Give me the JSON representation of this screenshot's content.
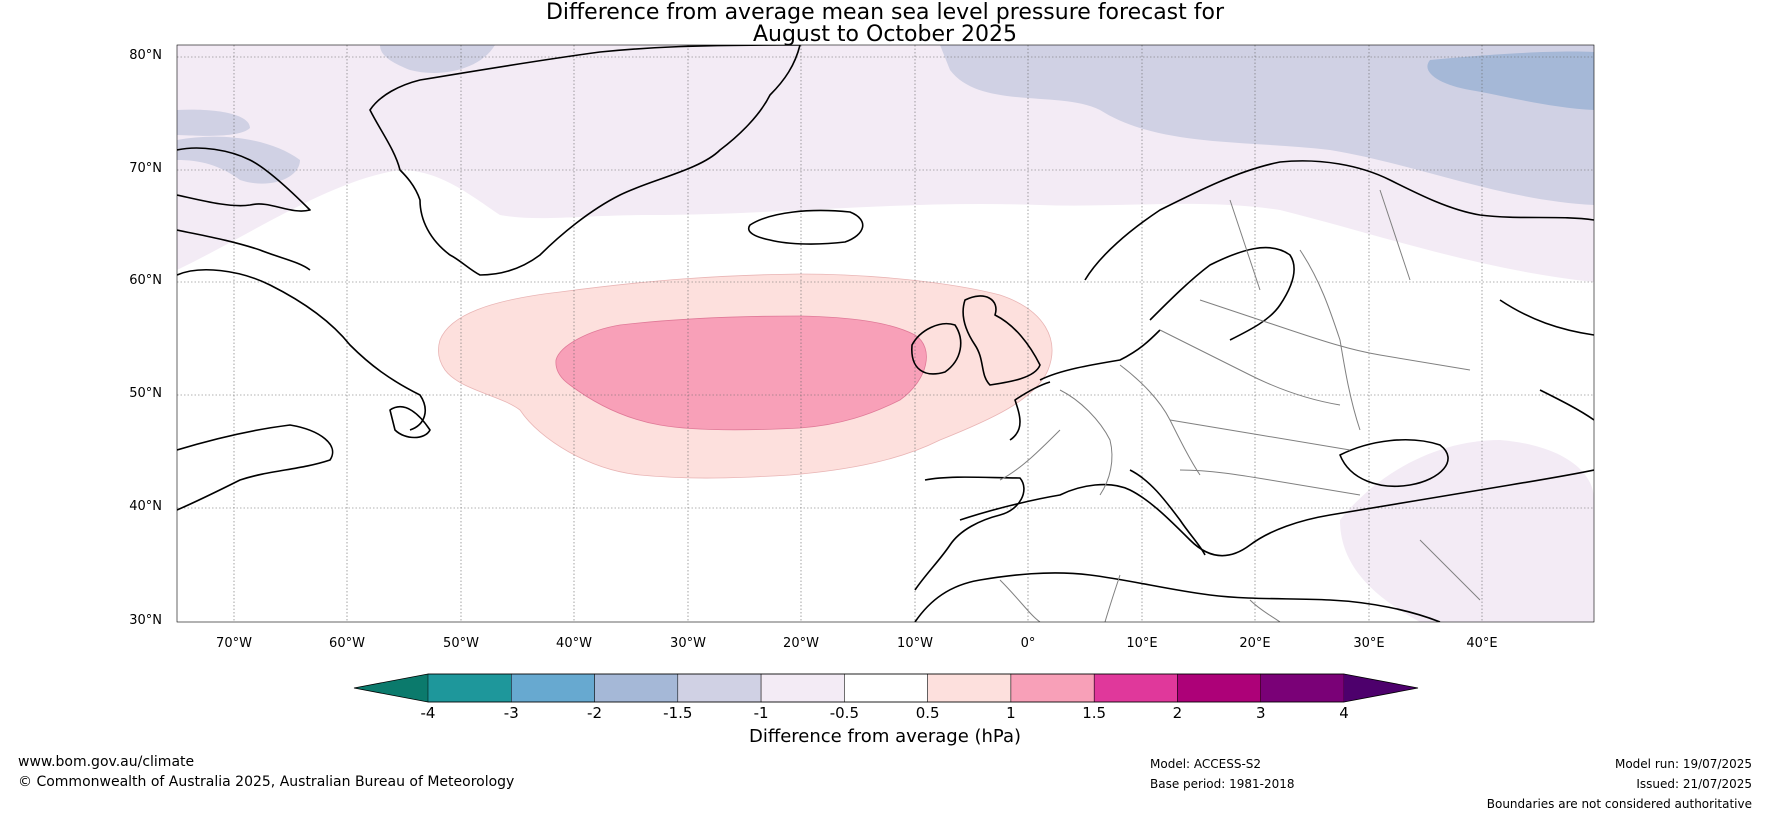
{
  "title": {
    "line1": "Difference from average mean sea level pressure forecast for",
    "line2": "August to October 2025"
  },
  "map": {
    "lat_labels": [
      "80°N",
      "70°N",
      "60°N",
      "50°N",
      "40°N",
      "30°N"
    ],
    "lon_labels": [
      "70°W",
      "60°W",
      "50°W",
      "40°W",
      "30°W",
      "20°W",
      "10°W",
      "0°",
      "10°E",
      "20°E",
      "30°E",
      "40°E"
    ]
  },
  "colorbar": {
    "label": "Difference from average (hPa)",
    "ticks": [
      "-4",
      "-3",
      "-2",
      "-1.5",
      "-1",
      "-0.5",
      "0.5",
      "1",
      "1.5",
      "2",
      "3",
      "4"
    ],
    "colors": [
      "#0b7a6c",
      "#1e979b",
      "#67a9d0",
      "#a5b8d7",
      "#d0d1e4",
      "#f3ebf5",
      "#ffffff",
      "#fde0dd",
      "#f8a0b8",
      "#e0389b",
      "#ad0178",
      "#7a0177",
      "#4d006c"
    ]
  },
  "footer": {
    "website": "www.bom.gov.au/climate",
    "copyright": "© Commonwealth of Australia 2025, Australian Bureau of Meteorology",
    "model": "Model: ACCESS-S2",
    "base_period": "Base period: 1981-2018",
    "model_run": "Model run: 19/07/2025",
    "issued": "Issued: 21/07/2025",
    "disclaimer": "Boundaries are not considered authoritative"
  }
}
